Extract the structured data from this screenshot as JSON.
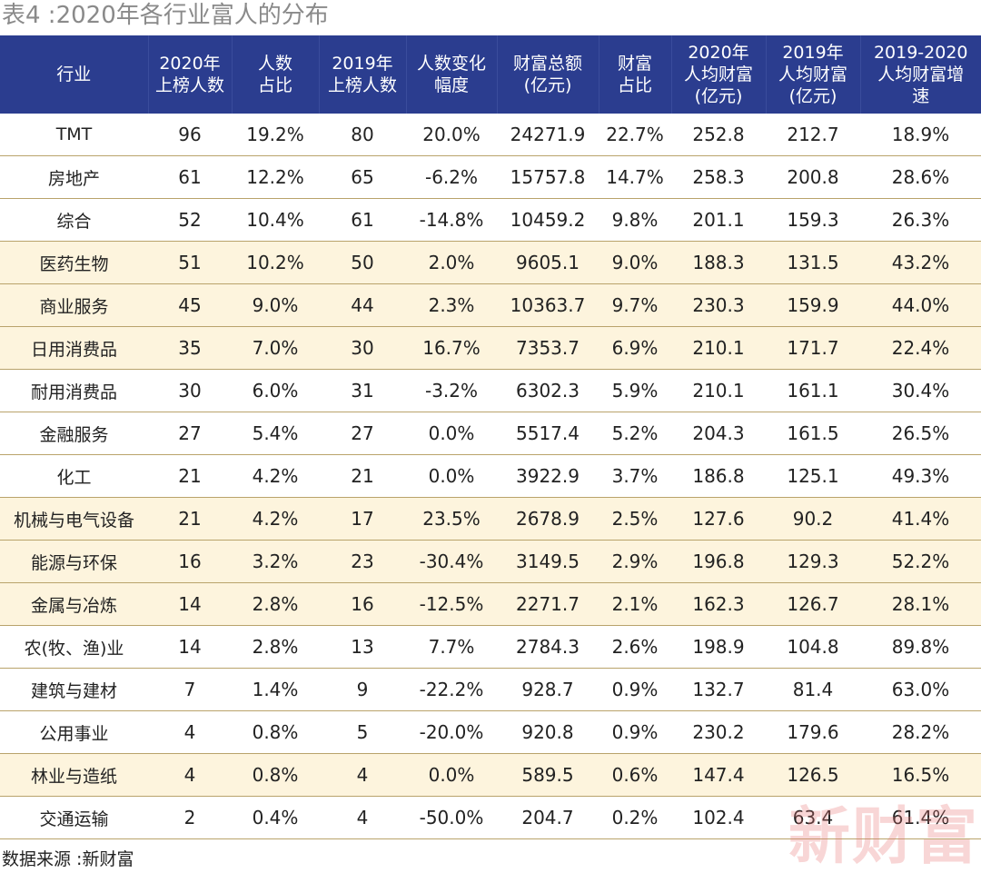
{
  "title": "表4 :2020年各行业富人的分布",
  "headers": [
    "行业",
    "2020年\n上榜人数",
    "人数\n占比",
    "2019年\n上榜人数",
    "人数变化\n幅度",
    "财富总额\n(亿元)",
    "财富\n占比",
    "2020年\n人均财富\n(亿元)",
    "2019年\n人均财富\n(亿元)",
    "2019-2020\n人均财富增\n速"
  ],
  "rows": [
    {
      "highlight": false,
      "cells": [
        "TMT",
        "96",
        "19.2%",
        "80",
        "20.0%",
        "24271.9",
        "22.7%",
        "252.8",
        "212.7",
        "18.9%"
      ]
    },
    {
      "highlight": false,
      "cells": [
        "房地产",
        "61",
        "12.2%",
        "65",
        "-6.2%",
        "15757.8",
        "14.7%",
        "258.3",
        "200.8",
        "28.6%"
      ]
    },
    {
      "highlight": false,
      "cells": [
        "综合",
        "52",
        "10.4%",
        "61",
        "-14.8%",
        "10459.2",
        "9.8%",
        "201.1",
        "159.3",
        "26.3%"
      ]
    },
    {
      "highlight": true,
      "cells": [
        "医药生物",
        "51",
        "10.2%",
        "50",
        "2.0%",
        "9605.1",
        "9.0%",
        "188.3",
        "131.5",
        "43.2%"
      ]
    },
    {
      "highlight": true,
      "cells": [
        "商业服务",
        "45",
        "9.0%",
        "44",
        "2.3%",
        "10363.7",
        "9.7%",
        "230.3",
        "159.9",
        "44.0%"
      ]
    },
    {
      "highlight": true,
      "cells": [
        "日用消费品",
        "35",
        "7.0%",
        "30",
        "16.7%",
        "7353.7",
        "6.9%",
        "210.1",
        "171.7",
        "22.4%"
      ]
    },
    {
      "highlight": false,
      "cells": [
        "耐用消费品",
        "30",
        "6.0%",
        "31",
        "-3.2%",
        "6302.3",
        "5.9%",
        "210.1",
        "161.1",
        "30.4%"
      ]
    },
    {
      "highlight": false,
      "cells": [
        "金融服务",
        "27",
        "5.4%",
        "27",
        "0.0%",
        "5517.4",
        "5.2%",
        "204.3",
        "161.5",
        "26.5%"
      ]
    },
    {
      "highlight": false,
      "cells": [
        "化工",
        "21",
        "4.2%",
        "21",
        "0.0%",
        "3922.9",
        "3.7%",
        "186.8",
        "125.1",
        "49.3%"
      ]
    },
    {
      "highlight": true,
      "cells": [
        "机械与电气设备",
        "21",
        "4.2%",
        "17",
        "23.5%",
        "2678.9",
        "2.5%",
        "127.6",
        "90.2",
        "41.4%"
      ]
    },
    {
      "highlight": true,
      "cells": [
        "能源与环保",
        "16",
        "3.2%",
        "23",
        "-30.4%",
        "3149.5",
        "2.9%",
        "196.8",
        "129.3",
        "52.2%"
      ]
    },
    {
      "highlight": true,
      "cells": [
        "金属与冶炼",
        "14",
        "2.8%",
        "16",
        "-12.5%",
        "2271.7",
        "2.1%",
        "162.3",
        "126.7",
        "28.1%"
      ]
    },
    {
      "highlight": false,
      "cells": [
        "农(牧、渔)业",
        "14",
        "2.8%",
        "13",
        "7.7%",
        "2784.3",
        "2.6%",
        "198.9",
        "104.8",
        "89.8%"
      ]
    },
    {
      "highlight": false,
      "cells": [
        "建筑与建材",
        "7",
        "1.4%",
        "9",
        "-22.2%",
        "928.7",
        "0.9%",
        "132.7",
        "81.4",
        "63.0%"
      ]
    },
    {
      "highlight": false,
      "cells": [
        "公用事业",
        "4",
        "0.8%",
        "5",
        "-20.0%",
        "920.8",
        "0.9%",
        "230.2",
        "179.6",
        "28.2%"
      ]
    },
    {
      "highlight": true,
      "cells": [
        "林业与造纸",
        "4",
        "0.8%",
        "4",
        "0.0%",
        "589.5",
        "0.6%",
        "147.4",
        "126.5",
        "16.5%"
      ]
    },
    {
      "highlight": false,
      "cells": [
        "交通运输",
        "2",
        "0.4%",
        "4",
        "-50.0%",
        "204.7",
        "0.2%",
        "102.4",
        "63.4",
        "61.4%"
      ]
    }
  ],
  "source": "数据来源 :新财富",
  "watermark": "新财富",
  "colors": {
    "header_bg": "#2b3d8f",
    "highlight_row": "#fdf4dd",
    "row_rule": "#b9a36b",
    "title": "#8a8a8a",
    "watermark": "#e87878"
  }
}
